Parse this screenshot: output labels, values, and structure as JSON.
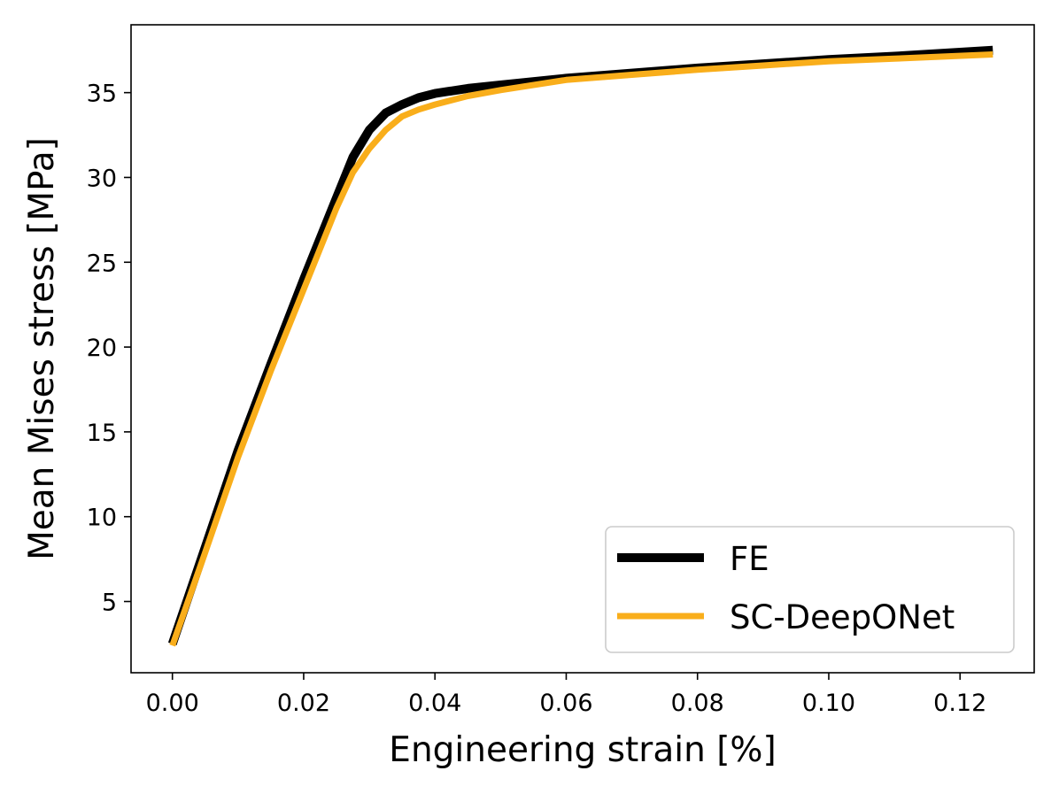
{
  "chart_data": {
    "type": "line",
    "title": "",
    "xlabel": "Engineering strain [%]",
    "ylabel": "Mean Mises stress [MPa]",
    "xlim": [
      -0.0063,
      0.1313
    ],
    "ylim": [
      0.8,
      39.0
    ],
    "x_ticks": [
      0.0,
      0.02,
      0.04,
      0.06,
      0.08,
      0.1,
      0.12
    ],
    "x_tick_labels": [
      "0.00",
      "0.02",
      "0.04",
      "0.06",
      "0.08",
      "0.10",
      "0.12"
    ],
    "y_ticks": [
      5,
      10,
      15,
      20,
      25,
      30,
      35
    ],
    "y_tick_labels": [
      "5",
      "10",
      "15",
      "20",
      "25",
      "30",
      "35"
    ],
    "grid": false,
    "legend_position": "lower-right",
    "series": [
      {
        "name": "FE",
        "color": "#000000",
        "x": [
          0.0,
          0.005,
          0.01,
          0.015,
          0.02,
          0.025,
          0.0275,
          0.03,
          0.0325,
          0.035,
          0.0375,
          0.04,
          0.045,
          0.05,
          0.06,
          0.07,
          0.08,
          0.09,
          0.1,
          0.11,
          0.125
        ],
        "y": [
          2.5,
          8.2,
          13.9,
          19.0,
          24.0,
          28.8,
          31.2,
          32.8,
          33.8,
          34.3,
          34.7,
          34.95,
          35.25,
          35.45,
          35.85,
          36.15,
          36.45,
          36.7,
          36.95,
          37.15,
          37.5
        ]
      },
      {
        "name": "SC-DeepONet",
        "color": "#F9AE1B",
        "x": [
          0.0,
          0.005,
          0.01,
          0.015,
          0.02,
          0.025,
          0.0275,
          0.03,
          0.0325,
          0.035,
          0.0375,
          0.04,
          0.045,
          0.05,
          0.06,
          0.07,
          0.08,
          0.09,
          0.1,
          0.11,
          0.125
        ],
        "y": [
          2.4,
          7.9,
          13.5,
          18.6,
          23.4,
          28.2,
          30.3,
          31.7,
          32.8,
          33.6,
          34.0,
          34.3,
          34.8,
          35.15,
          35.75,
          36.05,
          36.35,
          36.6,
          36.85,
          37.0,
          37.25
        ]
      }
    ]
  }
}
